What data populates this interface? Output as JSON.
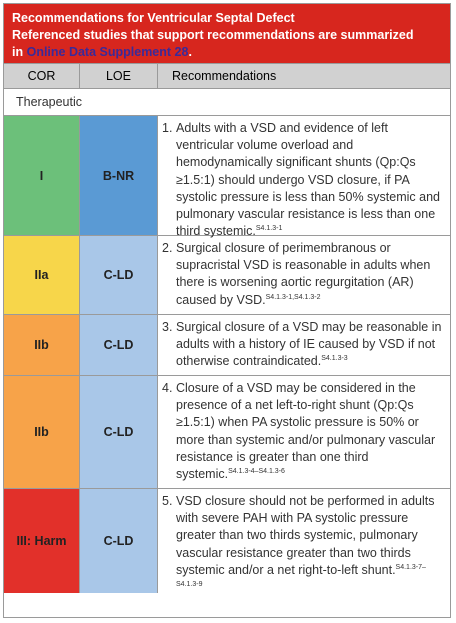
{
  "header": {
    "title": "Recommendations for Ventricular Septal Defect",
    "subtitle_prefix": "Referenced studies that support recommendations are summarized",
    "subtitle_in": "in ",
    "subtitle_link": "Online Data Supplement 28",
    "subtitle_suffix": "."
  },
  "columns": {
    "cor": "COR",
    "loe": "LOE",
    "rec": "Recommendations"
  },
  "section_label": "Therapeutic",
  "colors": {
    "header_red": "#d7261e",
    "class_I": "#6cc07a",
    "class_IIa": "#f7d64a",
    "class_IIb": "#f7a349",
    "class_III": "#e2302a",
    "loe_BNR": "#5a9ad4",
    "loe_CLD": "#a9c7e8"
  },
  "rows": [
    {
      "cor": "I",
      "loe": "B-NR",
      "num": "1.",
      "text": "Adults with a VSD and evidence of left ventricular volume overload and hemodynamically significant shunts (Qp:Qs ≥1.5:1) should undergo VSD closure, if PA systolic pressure is less than 50% systemic and pulmonary vascular resistance is less than one third systemic.",
      "ref": "S4.1.3-1"
    },
    {
      "cor": "IIa",
      "loe": "C-LD",
      "num": "2.",
      "text": "Surgical closure of perimembranous or supracristal VSD is reasonable in adults when there is worsening aortic regurgitation (AR) caused by VSD.",
      "ref": "S4.1.3-1,S4.1.3-2"
    },
    {
      "cor": "IIb",
      "loe": "C-LD",
      "num": "3.",
      "text": "Surgical closure of a VSD may be reasonable in adults with a history of IE caused by VSD if not otherwise contraindicated.",
      "ref": "S4.1.3-3"
    },
    {
      "cor": "IIb",
      "loe": "C-LD",
      "num": "4.",
      "text": "Closure of a VSD may be considered in the presence of a net left-to-right shunt (Qp:Qs ≥1.5:1) when PA systolic pressure is 50% or more than systemic and/or pulmonary vascular resistance is greater than one third systemic.",
      "ref": "S4.1.3-4–S4.1.3-6"
    },
    {
      "cor": "III: Harm",
      "loe": "C-LD",
      "num": "5.",
      "text": "VSD closure should not be performed in adults with severe PAH with PA systolic pressure greater than two thirds systemic, pulmonary vascular resistance greater than two thirds systemic and/or a net right-to-left shunt.",
      "ref": "S4.1.3-7–S4.1.3-9"
    }
  ]
}
